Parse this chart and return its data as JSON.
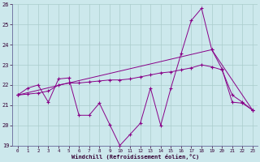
{
  "xlabel": "Windchill (Refroidissement éolien,°C)",
  "background_color": "#cce8ec",
  "grid_color": "#aacccc",
  "line_color": "#880088",
  "xlim": [
    -0.5,
    23.5
  ],
  "ylim": [
    19,
    26
  ],
  "yticks": [
    19,
    20,
    21,
    22,
    23,
    24,
    25,
    26
  ],
  "xticks": [
    0,
    1,
    2,
    3,
    4,
    5,
    6,
    7,
    8,
    9,
    10,
    11,
    12,
    13,
    14,
    15,
    16,
    17,
    18,
    19,
    20,
    21,
    22,
    23
  ],
  "line1_x": [
    0,
    1,
    2,
    3,
    4,
    5,
    6,
    7,
    8,
    9,
    10,
    11,
    12,
    13,
    14,
    15,
    16,
    17,
    18,
    19,
    20,
    21,
    22,
    23
  ],
  "line1_y": [
    21.5,
    21.85,
    22.0,
    21.15,
    22.3,
    22.35,
    20.5,
    20.5,
    21.1,
    20.05,
    19.0,
    19.55,
    20.1,
    21.85,
    20.0,
    21.85,
    23.55,
    25.2,
    25.8,
    23.75,
    22.8,
    21.15,
    21.1,
    20.75
  ],
  "line2_x": [
    0,
    1,
    2,
    3,
    4,
    5,
    6,
    7,
    8,
    9,
    10,
    11,
    12,
    13,
    14,
    15,
    16,
    17,
    18,
    19,
    20,
    21,
    22,
    23
  ],
  "line2_y": [
    21.5,
    21.55,
    21.6,
    21.7,
    22.0,
    22.1,
    22.1,
    22.15,
    22.2,
    22.25,
    22.25,
    22.3,
    22.4,
    22.5,
    22.6,
    22.65,
    22.75,
    22.85,
    23.0,
    22.9,
    22.75,
    21.5,
    21.15,
    20.75
  ],
  "line3_x": [
    0,
    5,
    19,
    23
  ],
  "line3_y": [
    21.5,
    22.1,
    23.75,
    20.75
  ]
}
